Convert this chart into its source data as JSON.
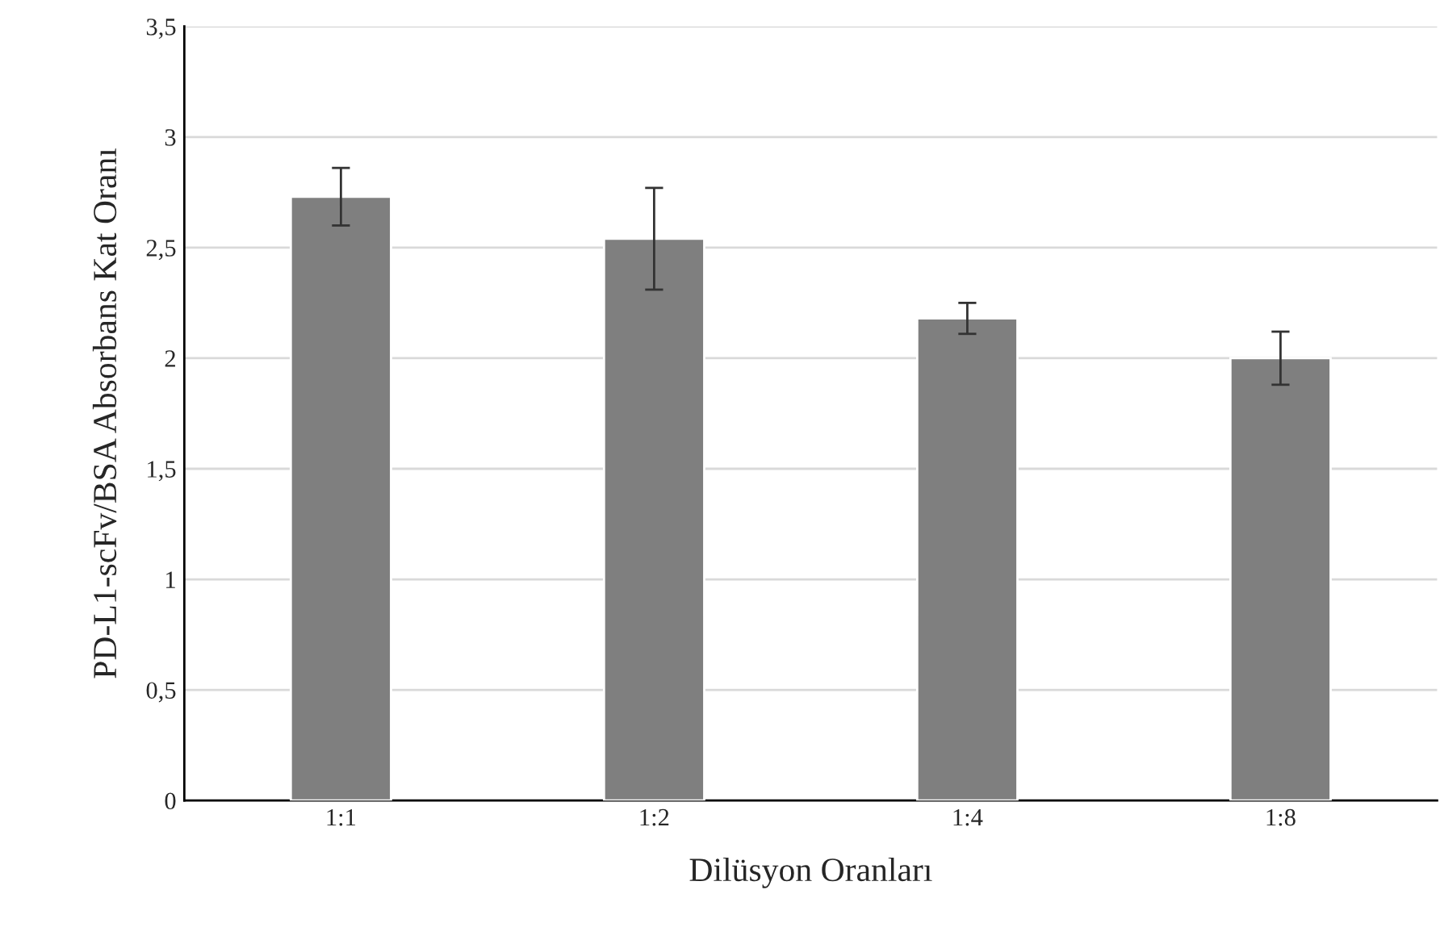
{
  "chart_data": {
    "type": "bar",
    "xlabel": "Dilüsyon Oranları",
    "ylabel": "PD-L1-scFv/BSA Absorbans Kat Oranı",
    "categories": [
      "1:1",
      "1:2",
      "1:4",
      "1:8"
    ],
    "values": [
      2.73,
      2.54,
      2.18,
      2.0
    ],
    "errors": [
      0.13,
      0.23,
      0.07,
      0.12
    ],
    "color": "#7f7f7f",
    "ylim": [
      0,
      3.5
    ],
    "yticks": [
      0,
      {
        "value": 0.5,
        "label": "0,5"
      },
      1,
      {
        "value": 1.5,
        "label": "1,5"
      },
      2,
      {
        "value": 2.5,
        "label": "2,5"
      },
      3,
      {
        "value": 3.5,
        "label": "3,5"
      }
    ],
    "grid": "y"
  }
}
